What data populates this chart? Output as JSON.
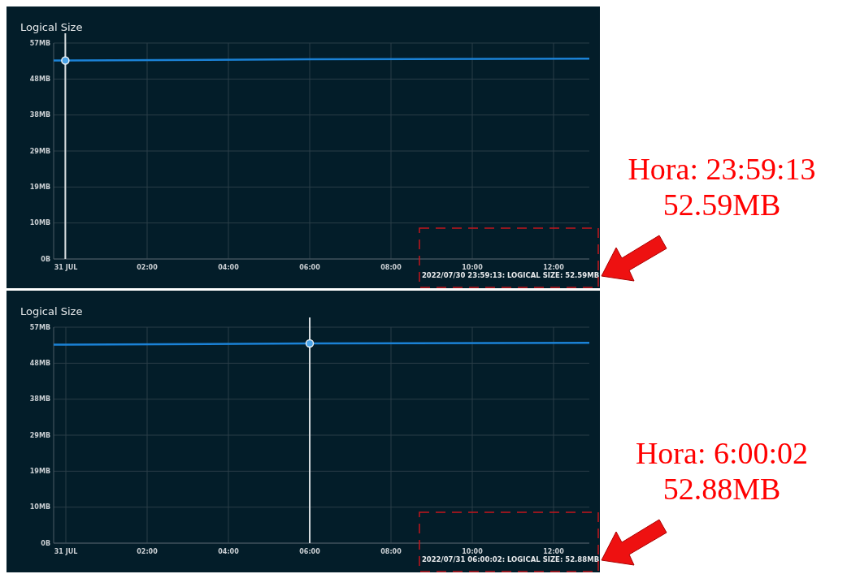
{
  "chart_data": [
    {
      "type": "line",
      "title": "Logical Size",
      "x": [
        -0.3,
        -0.013,
        6.0006,
        12.88
      ],
      "series": [
        {
          "color": "#1b82d6",
          "values": [
            52.6,
            52.6,
            52.9,
            53.1
          ]
        },
        {
          "type": "scatter",
          "color": "#4aa3e8",
          "x": [
            -0.013
          ],
          "values": [
            52.6
          ],
          "marker": "circle"
        }
      ],
      "xlim": [
        -0.3,
        12.88
      ],
      "xticks": [
        {
          "value": 0,
          "label": "31 JUL"
        },
        {
          "value": 2,
          "label": "02:00"
        },
        {
          "value": 4,
          "label": "04:00"
        },
        {
          "value": 6,
          "label": "06:00"
        },
        {
          "value": 8,
          "label": "08:00"
        },
        {
          "value": 10,
          "label": "10:00"
        },
        {
          "value": 12,
          "label": "12:00"
        }
      ],
      "ylim": [
        0,
        57.22
      ],
      "yticks": [
        {
          "value": 0,
          "label": "0B"
        },
        {
          "value": 9.54,
          "label": "10MB"
        },
        {
          "value": 19.07,
          "label": "19MB"
        },
        {
          "value": 28.61,
          "label": "29MB"
        },
        {
          "value": 38.15,
          "label": "38MB"
        },
        {
          "value": 47.68,
          "label": "48MB"
        },
        {
          "value": 57.22,
          "label": "57MB"
        }
      ],
      "grid": true,
      "marker": "none",
      "line_style": "solid",
      "ref_lines": [
        {
          "axis": "x",
          "value": -0.013,
          "color": "#d8dde0"
        }
      ],
      "annotations": [
        "2022/07/30 23:59:13: LOGICAL SIZE: 52.59MB",
        "Hora: 23:59:13\n52.59MB"
      ]
    },
    {
      "type": "line",
      "title": "Logical Size",
      "x": [
        -0.3,
        -0.013,
        6.0006,
        12.88
      ],
      "series": [
        {
          "color": "#1b82d6",
          "values": [
            52.6,
            52.6,
            52.9,
            53.1
          ]
        },
        {
          "type": "scatter",
          "color": "#4aa3e8",
          "x": [
            6.0006
          ],
          "values": [
            52.9
          ],
          "marker": "circle"
        }
      ],
      "xlim": [
        -0.3,
        12.88
      ],
      "xticks": [
        {
          "value": 0,
          "label": "31 JUL"
        },
        {
          "value": 2,
          "label": "02:00"
        },
        {
          "value": 4,
          "label": "04:00"
        },
        {
          "value": 6,
          "label": "06:00"
        },
        {
          "value": 8,
          "label": "08:00"
        },
        {
          "value": 10,
          "label": "10:00"
        },
        {
          "value": 12,
          "label": "12:00"
        }
      ],
      "ylim": [
        0,
        57.22
      ],
      "yticks": [
        {
          "value": 0,
          "label": "0B"
        },
        {
          "value": 9.54,
          "label": "10MB"
        },
        {
          "value": 19.07,
          "label": "19MB"
        },
        {
          "value": 28.61,
          "label": "29MB"
        },
        {
          "value": 38.15,
          "label": "38MB"
        },
        {
          "value": 47.68,
          "label": "48MB"
        },
        {
          "value": 57.22,
          "label": "57MB"
        }
      ],
      "grid": true,
      "marker": "none",
      "line_style": "solid",
      "ref_lines": [
        {
          "axis": "x",
          "value": 6.0006,
          "color": "#d8dde0"
        }
      ],
      "annotations": [
        "2022/07/31 06:00:02: LOGICAL SIZE: 52.88MB",
        "Hora: 6:00:02\n52.88MB"
      ]
    }
  ]
}
